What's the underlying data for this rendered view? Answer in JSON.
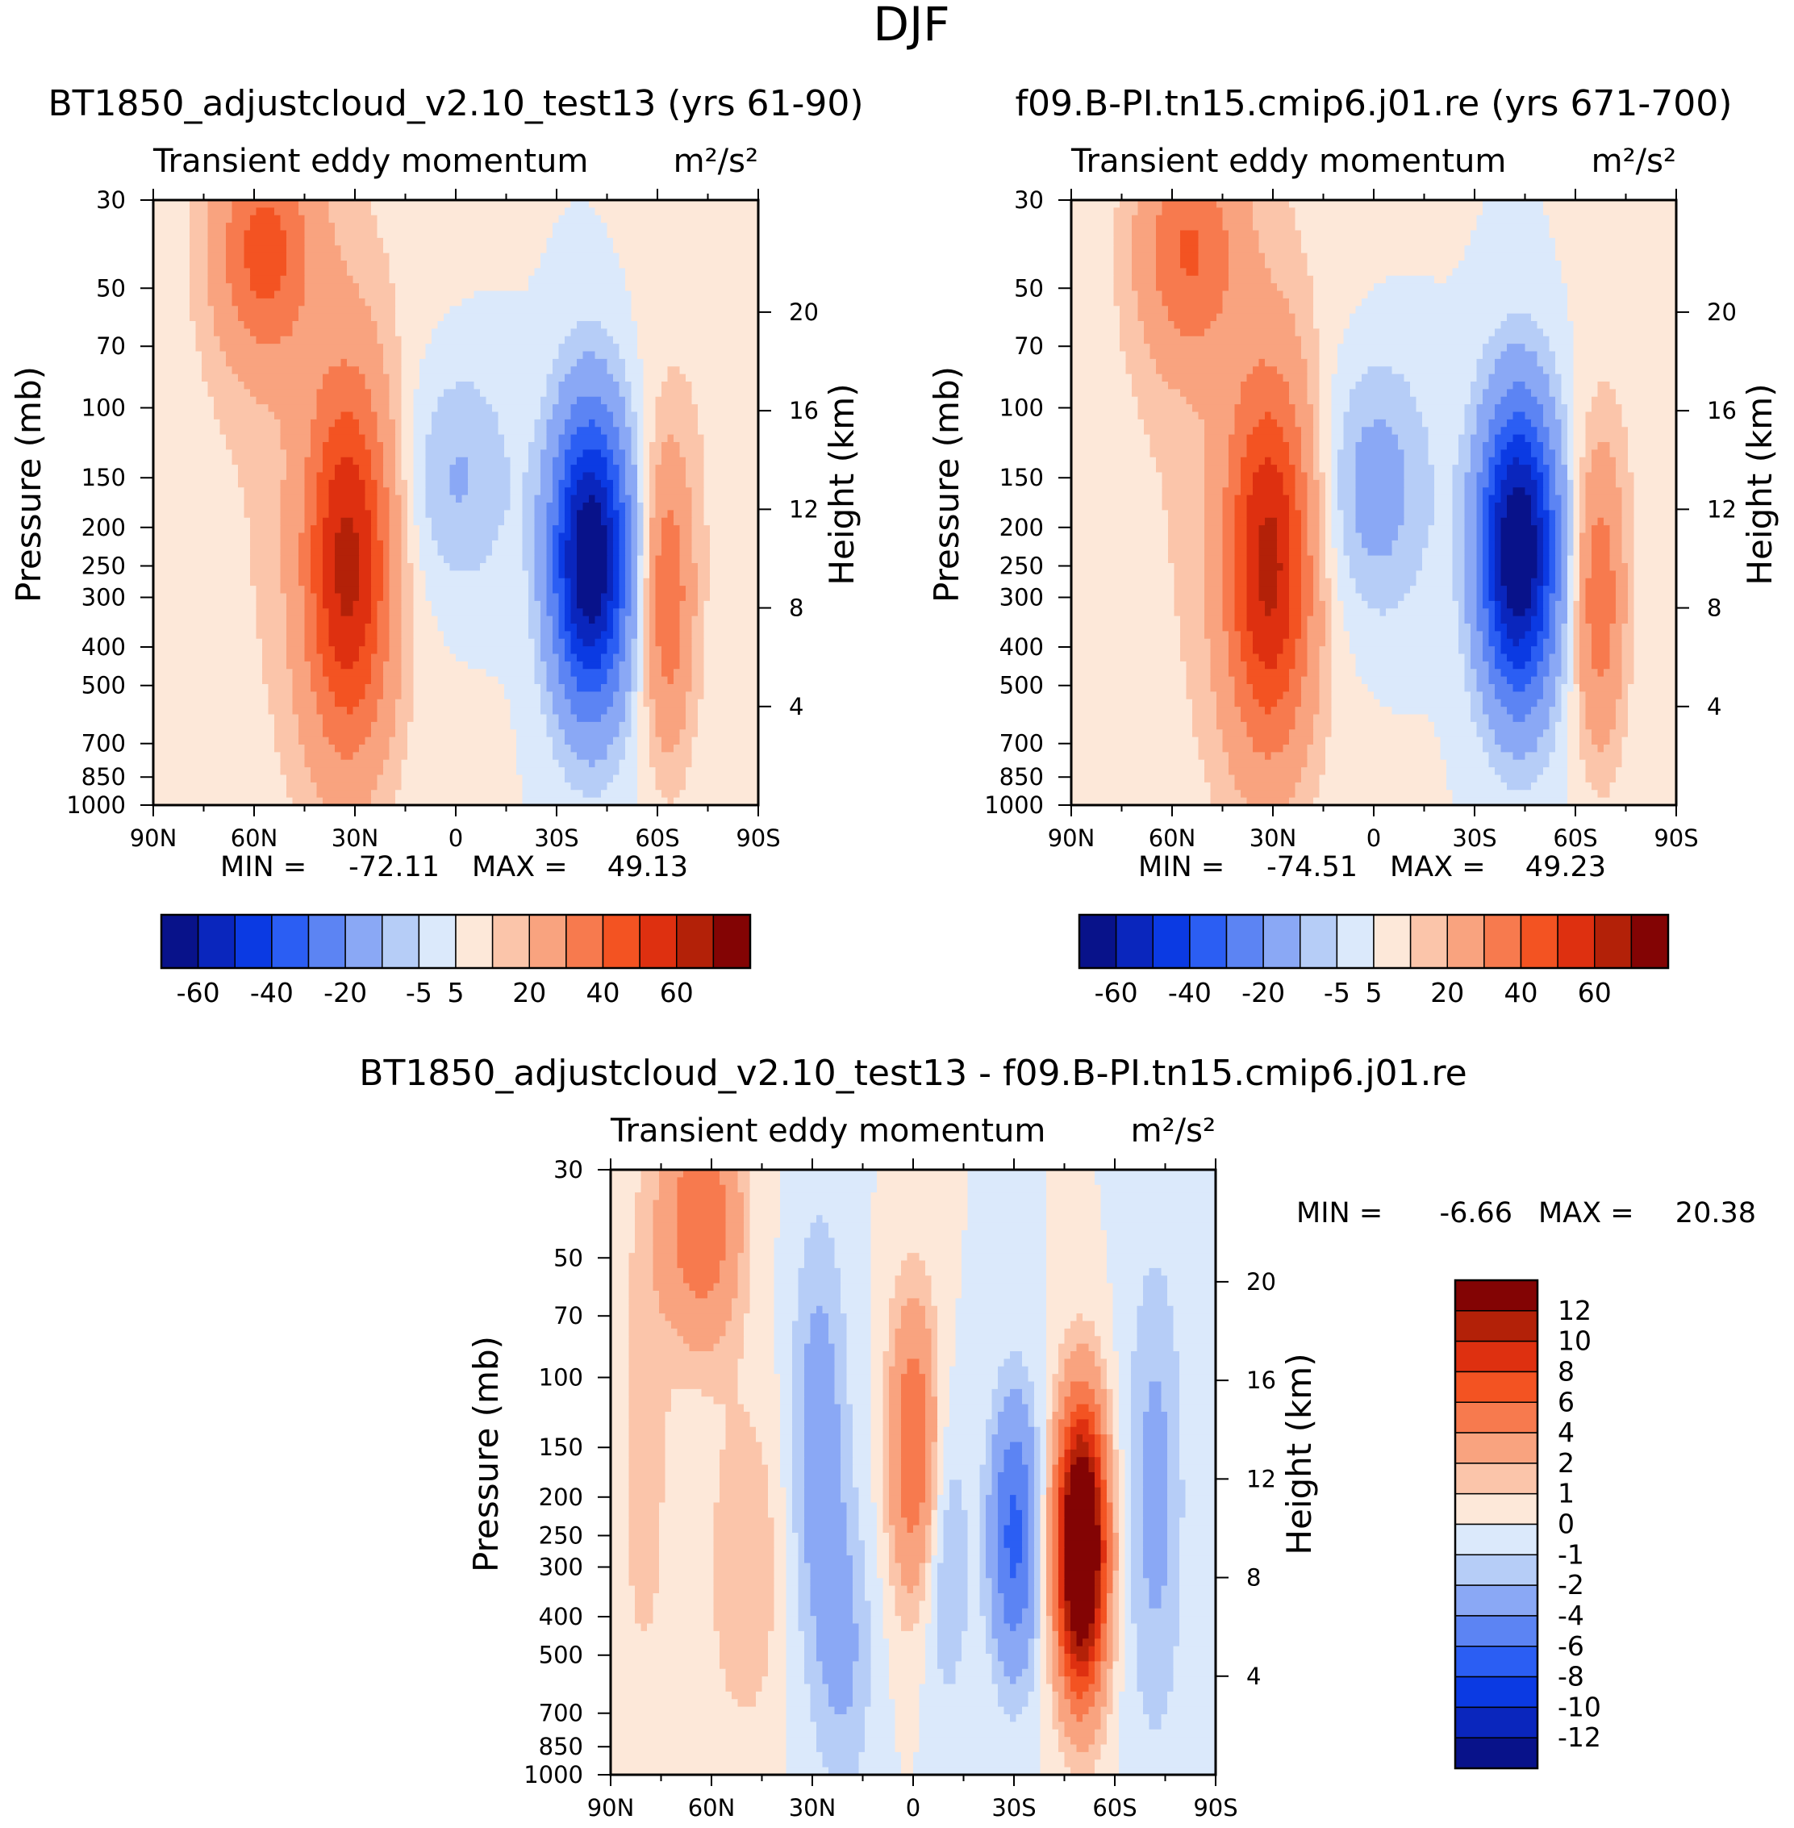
{
  "figure_title": "DJF",
  "colors": {
    "top_levels": [
      "#08128a",
      "#0a26bd",
      "#0b3ae3",
      "#2b5ef3",
      "#5c84f3",
      "#8aa8f5",
      "#b6cdf7",
      "#dbe9fb",
      "#fde8d9",
      "#fbc5aa",
      "#f9a37f",
      "#f77a4e",
      "#f35322",
      "#de3010",
      "#b32108",
      "#830404"
    ],
    "diff_levels": [
      "#08128a",
      "#0a26bd",
      "#0b3ae3",
      "#2b5ef3",
      "#5c84f3",
      "#8aa8f5",
      "#b6cdf7",
      "#dbe9fb",
      "#fde8d9",
      "#fbc5aa",
      "#f9a37f",
      "#f77a4e",
      "#f35322",
      "#de3010",
      "#b32108",
      "#830404"
    ]
  },
  "chart_data": [
    {
      "id": "panel_a",
      "type": "contour",
      "title": "BT1850_adjustcloud_v2.10_test13 (yrs 61-90)",
      "subtitle": "Transient eddy momentum",
      "units": "m²/s²",
      "xlabel": "",
      "ylabel": "Pressure (mb)",
      "y2label": "Height (km)",
      "x_ticks": [
        "90N",
        "60N",
        "30N",
        "0",
        "30S",
        "60S",
        "90S"
      ],
      "y_ticks": [
        "30",
        "50",
        "70",
        "100",
        "150",
        "200",
        "250",
        "300",
        "400",
        "500",
        "700",
        "850",
        "1000"
      ],
      "y2_ticks": [
        "20",
        "16",
        "12",
        "8",
        "4"
      ],
      "stats": {
        "min_label": "MIN =",
        "min": "-72.11",
        "max_label": "MAX =",
        "max": "49.13"
      },
      "colorbar_labels": [
        "-60",
        "-40",
        "-20",
        "-5",
        "5",
        "20",
        "40",
        "60"
      ],
      "levels": [
        -60,
        -50,
        -40,
        -30,
        -20,
        -10,
        -5,
        0,
        5,
        10,
        20,
        30,
        40,
        50,
        60
      ],
      "features": [
        {
          "lat": 57,
          "p": 40,
          "value": 30
        },
        {
          "lat": 32,
          "p": 250,
          "value": 49
        },
        {
          "lat": -40,
          "p": 240,
          "value": -72
        },
        {
          "lat": -63,
          "p": 300,
          "value": 25
        },
        {
          "lat": 0,
          "p": 150,
          "value": -12
        }
      ]
    },
    {
      "id": "panel_b",
      "type": "contour",
      "title": "f09.B-PI.tn15.cmip6.j01.re (yrs 671-700)",
      "subtitle": "Transient eddy momentum",
      "units": "m²/s²",
      "xlabel": "",
      "ylabel": "Pressure (mb)",
      "y2label": "Height (km)",
      "x_ticks": [
        "90N",
        "60N",
        "30N",
        "0",
        "30S",
        "60S",
        "90S"
      ],
      "y_ticks": [
        "30",
        "50",
        "70",
        "100",
        "150",
        "200",
        "250",
        "300",
        "400",
        "500",
        "700",
        "850",
        "1000"
      ],
      "y2_ticks": [
        "20",
        "16",
        "12",
        "8",
        "4"
      ],
      "stats": {
        "min_label": "MIN =",
        "min": "-74.51",
        "max_label": "MAX =",
        "max": "49.23"
      },
      "colorbar_labels": [
        "-60",
        "-40",
        "-20",
        "-5",
        "5",
        "20",
        "40",
        "60"
      ],
      "levels": [
        -60,
        -50,
        -40,
        -30,
        -20,
        -10,
        -5,
        0,
        5,
        10,
        20,
        30,
        40,
        50,
        60
      ],
      "features": [
        {
          "lat": 55,
          "p": 40,
          "value": 25
        },
        {
          "lat": 31,
          "p": 250,
          "value": 49
        },
        {
          "lat": -43,
          "p": 230,
          "value": -74
        },
        {
          "lat": -67,
          "p": 300,
          "value": 25
        },
        {
          "lat": 0,
          "p": 160,
          "value": -15
        }
      ]
    },
    {
      "id": "panel_diff",
      "type": "contour",
      "title": "BT1850_adjustcloud_v2.10_test13 - f09.B-PI.tn15.cmip6.j01.re",
      "subtitle": "Transient eddy momentum",
      "units": "m²/s²",
      "xlabel": "",
      "ylabel": "Pressure (mb)",
      "y2label": "Height (km)",
      "x_ticks": [
        "90N",
        "60N",
        "30N",
        "0",
        "30S",
        "60S",
        "90S"
      ],
      "y_ticks": [
        "30",
        "50",
        "70",
        "100",
        "150",
        "200",
        "250",
        "300",
        "400",
        "500",
        "700",
        "850",
        "1000"
      ],
      "y2_ticks": [
        "20",
        "16",
        "12",
        "8",
        "4"
      ],
      "stats": {
        "min_label": "MIN =",
        "min": "-6.66",
        "max_label": "MAX =",
        "max": "20.38"
      },
      "colorbar_labels": [
        "12",
        "10",
        "8",
        "6",
        "4",
        "2",
        "1",
        "0",
        "-1",
        "-2",
        "-4",
        "-6",
        "-8",
        "-10",
        "-12"
      ],
      "levels": [
        -12,
        -10,
        -8,
        -6,
        -4,
        -2,
        -1,
        0,
        1,
        2,
        4,
        6,
        8,
        10,
        12
      ],
      "features": [
        {
          "lat": -50,
          "p": 270,
          "value": 20
        },
        {
          "lat": -30,
          "p": 250,
          "value": -6.6
        },
        {
          "lat": 0,
          "p": 150,
          "value": 6
        },
        {
          "lat": 63,
          "p": 40,
          "value": 6
        },
        {
          "lat": 28,
          "p": 150,
          "value": -3
        }
      ]
    }
  ]
}
